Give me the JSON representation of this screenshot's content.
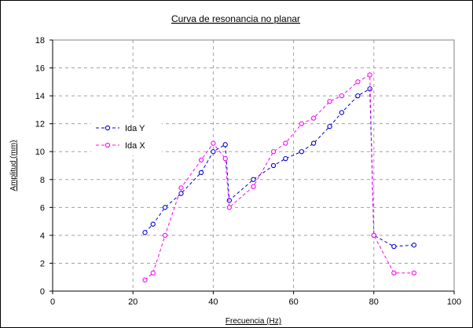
{
  "chart_data": {
    "type": "scatter",
    "title": "Curva de resonancia no planar",
    "xlabel": "Frecuencia (Hz)",
    "ylabel": "Amplitud (mm)",
    "xlim": [
      0,
      100
    ],
    "ylim": [
      0,
      18
    ],
    "xticks": [
      0,
      20,
      40,
      60,
      80,
      100
    ],
    "yticks": [
      0,
      2,
      4,
      6,
      8,
      10,
      12,
      14,
      16,
      18
    ],
    "grid": true,
    "legend_position": "left",
    "series": [
      {
        "name": "Ida Y",
        "color": "#0000cc",
        "marker": "open-circle",
        "line": "dashed",
        "x": [
          23,
          25,
          28,
          32,
          37,
          40,
          43,
          44,
          50,
          55,
          58,
          62,
          65,
          69,
          72,
          76,
          79,
          80,
          85,
          90
        ],
        "y": [
          4.2,
          4.8,
          6.0,
          7.0,
          8.5,
          10.0,
          10.5,
          6.5,
          8.0,
          9.0,
          9.5,
          10.0,
          10.6,
          11.8,
          12.8,
          14.0,
          14.5,
          4.0,
          3.2,
          3.3
        ]
      },
      {
        "name": "Ida X",
        "color": "#ff00ff",
        "marker": "open-circle",
        "line": "dashed",
        "x": [
          23,
          25,
          28,
          32,
          37,
          40,
          43,
          44,
          50,
          55,
          58,
          62,
          65,
          69,
          72,
          76,
          79,
          80,
          85,
          90
        ],
        "y": [
          0.8,
          1.3,
          4.0,
          7.4,
          9.4,
          10.6,
          9.5,
          6.0,
          7.5,
          10.0,
          10.6,
          12.0,
          12.4,
          13.6,
          14.0,
          15.0,
          15.5,
          4.0,
          1.3,
          1.3
        ]
      }
    ]
  }
}
